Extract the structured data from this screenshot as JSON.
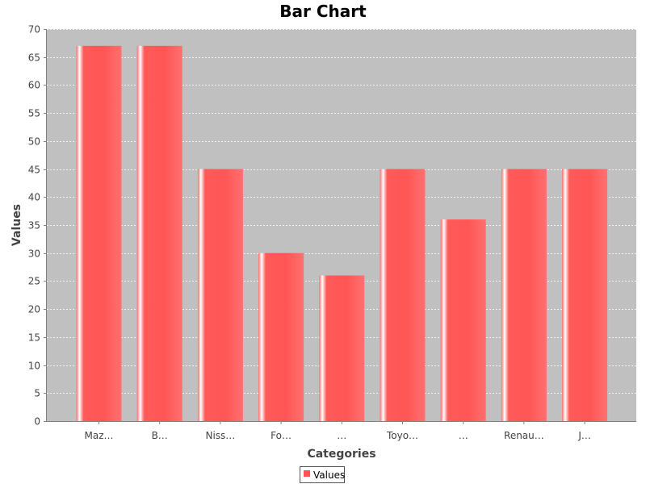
{
  "chart_data": {
    "type": "bar",
    "title": "Bar Chart",
    "xlabel": "Categories",
    "ylabel": "Values",
    "categories": [
      "Maz…",
      "B…",
      "Niss…",
      "Fo…",
      "…",
      "Toyo…",
      "…",
      "Renau…",
      "J…"
    ],
    "series": [
      {
        "name": "Values",
        "values": [
          67,
          67,
          45,
          30,
          26,
          45,
          36,
          45,
          45
        ]
      }
    ],
    "ylim": [
      0,
      70
    ],
    "yticks": [
      0,
      5,
      10,
      15,
      20,
      25,
      30,
      35,
      40,
      45,
      50,
      55,
      60,
      65,
      70
    ],
    "grid": true,
    "legend_position": "bottom-center",
    "colors": {
      "bar": "#ff5555",
      "bar_highlight": "#ffffff",
      "plot_background": "#c0c0c0",
      "gridline": "#ffffff",
      "axis": "#808080"
    }
  }
}
